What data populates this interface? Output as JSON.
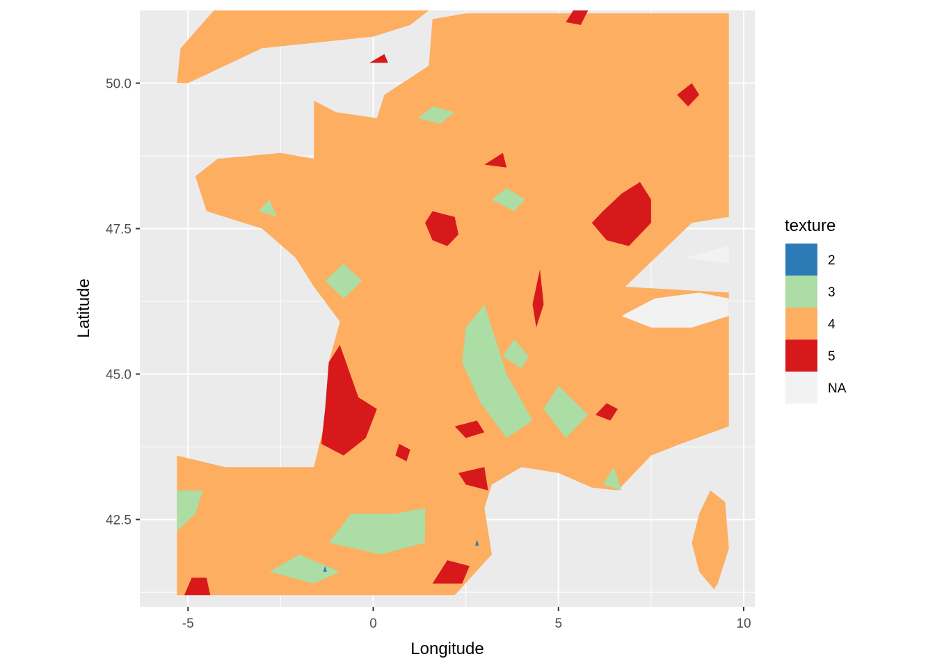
{
  "chart_data": {
    "type": "heatmap",
    "xlabel": "Longitude",
    "ylabel": "Latitude",
    "xlim": [
      -6.3,
      10.3
    ],
    "ylim": [
      41.0,
      51.25
    ],
    "x_ticks": [
      -5,
      0,
      5,
      10
    ],
    "x_tick_labels": [
      "-5",
      "0",
      "5",
      "10"
    ],
    "y_ticks": [
      42.5,
      45.0,
      47.5,
      50.0
    ],
    "y_tick_labels": [
      "42.5",
      "45.0",
      "47.5",
      "50.0"
    ],
    "grid": true,
    "panel_background": "#ebebeb",
    "legend": {
      "title": "texture",
      "placement": "right",
      "entries": [
        {
          "label": "2",
          "color": "#2c7bb6"
        },
        {
          "label": "3",
          "color": "#abdda4"
        },
        {
          "label": "4",
          "color": "#fdae61"
        },
        {
          "label": "5",
          "color": "#d7191c"
        },
        {
          "label": "NA",
          "color": "#f2f2f2"
        }
      ]
    },
    "regions": {
      "france": [
        [
          1.6,
          51.1
        ],
        [
          2.5,
          51.2
        ],
        [
          9.6,
          51.2
        ],
        [
          9.6,
          47.7
        ],
        [
          8.6,
          47.6
        ],
        [
          6.8,
          46.5
        ],
        [
          9.6,
          46.4
        ],
        [
          9.6,
          44.1
        ],
        [
          8.3,
          43.8
        ],
        [
          7.5,
          43.6
        ],
        [
          6.6,
          43.0
        ],
        [
          5.9,
          43.05
        ],
        [
          5.0,
          43.3
        ],
        [
          4.0,
          43.4
        ],
        [
          3.2,
          43.1
        ],
        [
          3.0,
          42.7
        ],
        [
          3.1,
          42.3
        ],
        [
          2.4,
          42.3
        ],
        [
          0.5,
          42.6
        ],
        [
          -1.0,
          43.0
        ],
        [
          -1.6,
          43.4
        ],
        [
          -1.3,
          44.2
        ],
        [
          -1.2,
          45.2
        ],
        [
          -0.9,
          45.9
        ],
        [
          -1.6,
          46.5
        ],
        [
          -2.1,
          47.0
        ],
        [
          -3.0,
          47.5
        ],
        [
          -4.5,
          47.8
        ],
        [
          -4.8,
          48.4
        ],
        [
          -4.2,
          48.7
        ],
        [
          -2.5,
          48.8
        ],
        [
          -1.6,
          48.7
        ],
        [
          -1.6,
          49.7
        ],
        [
          -1.0,
          49.5
        ],
        [
          0.1,
          49.4
        ],
        [
          0.3,
          49.8
        ],
        [
          1.5,
          50.3
        ],
        [
          1.6,
          51.1
        ]
      ],
      "iberia": [
        [
          -5.3,
          43.6
        ],
        [
          -4.0,
          43.4
        ],
        [
          -2.5,
          43.4
        ],
        [
          -1.6,
          43.4
        ],
        [
          -1.0,
          43.0
        ],
        [
          0.5,
          42.6
        ],
        [
          2.4,
          42.3
        ],
        [
          3.1,
          42.3
        ],
        [
          3.2,
          41.9
        ],
        [
          2.2,
          41.2
        ],
        [
          -5.3,
          41.2
        ]
      ],
      "england": [
        [
          -5.0,
          50.0
        ],
        [
          -4.0,
          50.3
        ],
        [
          -3.0,
          50.6
        ],
        [
          -1.5,
          50.7
        ],
        [
          0.0,
          50.8
        ],
        [
          1.0,
          51.0
        ],
        [
          1.5,
          51.25
        ],
        [
          -4.3,
          51.25
        ],
        [
          -5.2,
          50.6
        ],
        [
          -5.3,
          50.0
        ]
      ],
      "corsica": [
        [
          9.1,
          43.0
        ],
        [
          9.5,
          42.8
        ],
        [
          9.6,
          42.0
        ],
        [
          9.3,
          41.4
        ],
        [
          9.2,
          41.3
        ],
        [
          8.8,
          41.6
        ],
        [
          8.6,
          42.1
        ],
        [
          8.8,
          42.6
        ]
      ],
      "red_patches": [
        [
          [
            -1.2,
            45.2
          ],
          [
            -0.9,
            45.5
          ],
          [
            -0.4,
            44.6
          ],
          [
            0.1,
            44.4
          ],
          [
            -0.2,
            43.9
          ],
          [
            -0.8,
            43.6
          ],
          [
            -1.4,
            43.8
          ],
          [
            -1.3,
            44.4
          ]
        ],
        [
          [
            7.2,
            48.3
          ],
          [
            6.7,
            48.1
          ],
          [
            6.2,
            47.8
          ],
          [
            5.9,
            47.6
          ],
          [
            6.3,
            47.3
          ],
          [
            6.9,
            47.2
          ],
          [
            7.5,
            47.6
          ],
          [
            7.5,
            48.0
          ]
        ],
        [
          [
            1.6,
            47.8
          ],
          [
            1.4,
            47.6
          ],
          [
            1.6,
            47.3
          ],
          [
            2.0,
            47.2
          ],
          [
            2.3,
            47.4
          ],
          [
            2.2,
            47.7
          ]
        ],
        [
          [
            4.5,
            46.8
          ],
          [
            4.3,
            46.2
          ],
          [
            4.4,
            45.8
          ],
          [
            4.6,
            46.2
          ]
        ],
        [
          [
            5.4,
            51.25
          ],
          [
            5.2,
            51.05
          ],
          [
            5.6,
            51.0
          ],
          [
            5.8,
            51.25
          ]
        ],
        [
          [
            8.6,
            50.0
          ],
          [
            8.2,
            49.8
          ],
          [
            8.5,
            49.6
          ],
          [
            8.8,
            49.8
          ]
        ],
        [
          [
            3.0,
            43.4
          ],
          [
            2.3,
            43.3
          ],
          [
            2.5,
            43.1
          ],
          [
            3.1,
            43.0
          ]
        ],
        [
          [
            2.8,
            44.2
          ],
          [
            2.2,
            44.1
          ],
          [
            2.5,
            43.9
          ],
          [
            3.0,
            44.0
          ]
        ],
        [
          [
            -4.9,
            41.5
          ],
          [
            -4.5,
            41.5
          ],
          [
            -4.4,
            41.2
          ],
          [
            -5.1,
            41.2
          ]
        ],
        [
          [
            2.0,
            41.8
          ],
          [
            1.6,
            41.4
          ],
          [
            2.4,
            41.4
          ],
          [
            2.6,
            41.7
          ]
        ],
        [
          [
            0.7,
            43.8
          ],
          [
            0.6,
            43.6
          ],
          [
            0.9,
            43.5
          ],
          [
            1.0,
            43.7
          ]
        ],
        [
          [
            0.3,
            50.5
          ],
          [
            -0.1,
            50.35
          ],
          [
            0.4,
            50.35
          ]
        ],
        [
          [
            6.3,
            44.5
          ],
          [
            6.0,
            44.3
          ],
          [
            6.4,
            44.2
          ],
          [
            6.6,
            44.4
          ]
        ],
        [
          [
            3.5,
            48.8
          ],
          [
            3.0,
            48.6
          ],
          [
            3.6,
            48.55
          ]
        ]
      ],
      "green_patches": [
        [
          [
            3.0,
            46.2
          ],
          [
            3.6,
            45.0
          ],
          [
            4.3,
            44.2
          ],
          [
            3.6,
            43.9
          ],
          [
            2.9,
            44.5
          ],
          [
            2.4,
            45.2
          ],
          [
            2.5,
            45.8
          ]
        ],
        [
          [
            1.4,
            42.7
          ],
          [
            0.6,
            42.6
          ],
          [
            -0.6,
            42.6
          ],
          [
            -1.2,
            42.1
          ],
          [
            0.2,
            41.9
          ],
          [
            1.4,
            42.1
          ]
        ],
        [
          [
            5.0,
            44.8
          ],
          [
            4.6,
            44.4
          ],
          [
            5.2,
            43.9
          ],
          [
            5.8,
            44.3
          ]
        ],
        [
          [
            -0.8,
            46.9
          ],
          [
            -1.3,
            46.6
          ],
          [
            -0.8,
            46.3
          ],
          [
            -0.3,
            46.6
          ]
        ],
        [
          [
            1.6,
            49.6
          ],
          [
            1.2,
            49.4
          ],
          [
            1.8,
            49.3
          ],
          [
            2.2,
            49.5
          ]
        ],
        [
          [
            3.6,
            48.2
          ],
          [
            3.2,
            48.0
          ],
          [
            3.8,
            47.8
          ],
          [
            4.1,
            48.0
          ]
        ],
        [
          [
            -2.0,
            41.9
          ],
          [
            -2.8,
            41.6
          ],
          [
            -1.6,
            41.4
          ],
          [
            -0.9,
            41.6
          ]
        ],
        [
          [
            -4.8,
            42.6
          ],
          [
            -5.3,
            42.3
          ],
          [
            -5.3,
            43.0
          ],
          [
            -4.6,
            43.0
          ]
        ],
        [
          [
            6.5,
            43.4
          ],
          [
            6.2,
            43.1
          ],
          [
            6.7,
            43.0
          ]
        ],
        [
          [
            3.8,
            45.6
          ],
          [
            3.5,
            45.3
          ],
          [
            4.0,
            45.1
          ],
          [
            4.2,
            45.3
          ]
        ],
        [
          [
            -2.8,
            48.0
          ],
          [
            -3.1,
            47.8
          ],
          [
            -2.6,
            47.7
          ]
        ]
      ],
      "blue_patches": [
        [
          [
            2.8,
            42.15
          ],
          [
            2.75,
            42.05
          ],
          [
            2.85,
            42.05
          ]
        ],
        [
          [
            -1.3,
            41.7
          ],
          [
            -1.35,
            41.6
          ],
          [
            -1.25,
            41.6
          ]
        ]
      ],
      "na_patches": [
        [
          [
            6.7,
            46.0
          ],
          [
            7.6,
            46.3
          ],
          [
            8.8,
            46.4
          ],
          [
            9.6,
            46.3
          ],
          [
            9.6,
            46.0
          ],
          [
            8.6,
            45.8
          ],
          [
            7.5,
            45.8
          ]
        ],
        [
          [
            9.6,
            47.2
          ],
          [
            8.4,
            47.0
          ],
          [
            9.6,
            46.9
          ]
        ]
      ]
    }
  }
}
